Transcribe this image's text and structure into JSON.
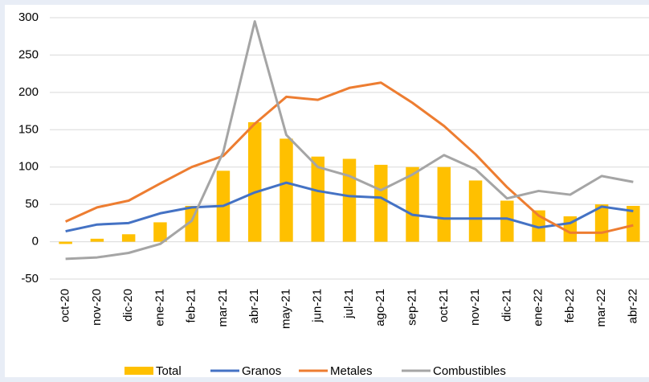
{
  "chart_data": {
    "type": "combo",
    "categories": [
      "oct-20",
      "nov-20",
      "dic-20",
      "ene-21",
      "feb-21",
      "mar-21",
      "abr-21",
      "may-21",
      "jun-21",
      "jul-21",
      "ago-21",
      "sep-21",
      "oct-21",
      "nov-21",
      "dic-21",
      "ene-22",
      "feb-22",
      "mar-22",
      "abr-22"
    ],
    "series": [
      {
        "name": "Total",
        "type": "bar",
        "color": "#ffc000",
        "values": [
          -3,
          4,
          10,
          26,
          48,
          95,
          160,
          138,
          114,
          111,
          103,
          100,
          100,
          82,
          55,
          42,
          34,
          50,
          48
        ]
      },
      {
        "name": "Granos",
        "type": "line",
        "color": "#4472c4",
        "values": [
          14,
          23,
          25,
          38,
          46,
          48,
          66,
          79,
          68,
          61,
          59,
          36,
          31,
          31,
          31,
          19,
          25,
          47,
          41
        ]
      },
      {
        "name": "Metales",
        "type": "line",
        "color": "#ed7d31",
        "values": [
          27,
          46,
          55,
          78,
          100,
          115,
          158,
          194,
          190,
          206,
          213,
          186,
          155,
          117,
          73,
          35,
          12,
          12,
          22
        ]
      },
      {
        "name": "Combustibles",
        "type": "line",
        "color": "#a5a5a5",
        "values": [
          -23,
          -21,
          -15,
          -3,
          28,
          120,
          295,
          143,
          100,
          88,
          69,
          90,
          116,
          97,
          58,
          68,
          63,
          88,
          80
        ]
      }
    ],
    "ylim": [
      -50,
      300
    ],
    "yticks": [
      -50,
      0,
      50,
      100,
      150,
      200,
      250,
      300
    ],
    "grid": true,
    "legend": "bottom"
  }
}
